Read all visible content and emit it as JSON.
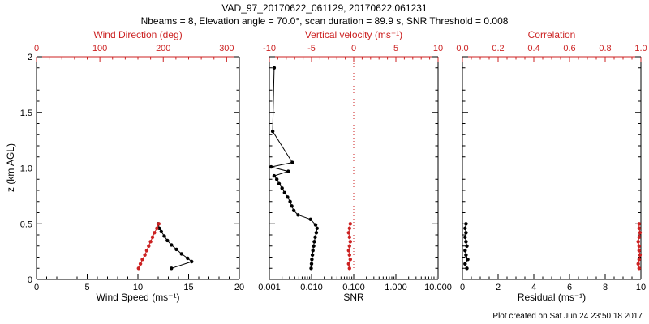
{
  "header": {
    "title": "VAD_97_20170622_061129, 20170622.061231",
    "subtitle": "Nbeams = 8, Elevation angle = 70.0°, scan duration = 89.9 s, SNR Threshold = 0.008"
  },
  "footer": {
    "created": "Plot created on Sat Jun 24 23:50:18 2017"
  },
  "colors": {
    "primary": "#000000",
    "secondary": "#cc2222",
    "background": "#ffffff"
  },
  "y_axis": {
    "label": "z (km AGL)",
    "range": [
      0,
      2
    ],
    "ticks": [
      0,
      0.5,
      1,
      1.5,
      2
    ],
    "tick_labels": [
      "0",
      "0.5",
      "1.0",
      "1.5",
      "2"
    ],
    "minor_step": 0.1
  },
  "chart_data": [
    {
      "type": "scatter",
      "name": "wind-speed-direction-panel",
      "show_y_labels": true,
      "x_bottom": {
        "label": "Wind Speed (ms⁻¹)",
        "scale": "linear",
        "range": [
          0,
          20
        ],
        "ticks": [
          0,
          5,
          10,
          15,
          20
        ],
        "tick_labels": [
          "0",
          "5",
          "10",
          "15",
          "20"
        ],
        "minor_step": 1
      },
      "x_top": {
        "label": "Wind Direction (deg)",
        "scale": "linear",
        "range": [
          0,
          320
        ],
        "ticks": [
          0,
          100,
          200,
          300
        ],
        "tick_labels": [
          "0",
          "100",
          "200",
          "300"
        ],
        "minor_step": 20
      },
      "series": [
        {
          "name": "wind_speed",
          "axis": "bottom",
          "color": "#000000",
          "points": [
            [
              13.3,
              0.1
            ],
            [
              15.3,
              0.16
            ],
            [
              14.9,
              0.19
            ],
            [
              14.3,
              0.23
            ],
            [
              13.8,
              0.27
            ],
            [
              13.3,
              0.31
            ],
            [
              12.9,
              0.35
            ],
            [
              12.6,
              0.39
            ],
            [
              12.3,
              0.43
            ],
            [
              12.1,
              0.46
            ],
            [
              12.0,
              0.5
            ]
          ]
        },
        {
          "name": "wind_direction",
          "axis": "top",
          "color": "#cc2222",
          "points": [
            [
              161,
              0.1
            ],
            [
              164,
              0.14
            ],
            [
              167,
              0.18
            ],
            [
              171,
              0.22
            ],
            [
              174,
              0.26
            ],
            [
              177,
              0.3
            ],
            [
              180,
              0.34
            ],
            [
              183,
              0.38
            ],
            [
              186,
              0.42
            ],
            [
              190,
              0.46
            ],
            [
              193,
              0.5
            ]
          ]
        }
      ]
    },
    {
      "type": "scatter",
      "name": "snr-vertical-velocity-panel",
      "show_y_labels": false,
      "refline_top": 0,
      "x_bottom": {
        "label": "SNR",
        "scale": "log",
        "range": [
          0.001,
          10
        ],
        "ticks": [
          0.001,
          0.01,
          0.1,
          1,
          10
        ],
        "tick_labels": [
          "0.001",
          "0.010",
          "0.100",
          "1.000",
          "10.000"
        ]
      },
      "x_top": {
        "label": "Vertical velocity (ms⁻¹)",
        "scale": "linear",
        "range": [
          -10,
          10
        ],
        "ticks": [
          -10,
          -5,
          0,
          5,
          10
        ],
        "tick_labels": [
          "-10",
          "-5",
          "0",
          "5",
          "10"
        ],
        "minor_step": 1
      },
      "series": [
        {
          "name": "snr",
          "axis": "bottom",
          "color": "#000000",
          "points": [
            [
              0.0098,
              0.1
            ],
            [
              0.01,
              0.14
            ],
            [
              0.0102,
              0.18
            ],
            [
              0.0105,
              0.22
            ],
            [
              0.0108,
              0.26
            ],
            [
              0.0112,
              0.3
            ],
            [
              0.0116,
              0.34
            ],
            [
              0.0122,
              0.38
            ],
            [
              0.013,
              0.42
            ],
            [
              0.0135,
              0.46
            ],
            [
              0.0125,
              0.49
            ],
            [
              0.0095,
              0.54
            ],
            [
              0.0048,
              0.58
            ],
            [
              0.0038,
              0.62
            ],
            [
              0.0034,
              0.66
            ],
            [
              0.0031,
              0.7
            ],
            [
              0.0027,
              0.74
            ],
            [
              0.0023,
              0.78
            ],
            [
              0.002,
              0.82
            ],
            [
              0.0017,
              0.86
            ],
            [
              0.0015,
              0.9
            ],
            [
              0.0013,
              0.93
            ],
            [
              0.0028,
              0.97
            ],
            [
              0.0011,
              1.01
            ],
            [
              0.0035,
              1.05
            ],
            [
              0.0012,
              1.33
            ],
            [
              0.0013,
              1.9
            ]
          ]
        },
        {
          "name": "vertical_velocity",
          "axis": "top",
          "color": "#cc2222",
          "points": [
            [
              -0.5,
              0.1
            ],
            [
              -0.6,
              0.14
            ],
            [
              -0.4,
              0.18
            ],
            [
              -0.5,
              0.22
            ],
            [
              -0.6,
              0.26
            ],
            [
              -0.5,
              0.3
            ],
            [
              -0.4,
              0.34
            ],
            [
              -0.5,
              0.38
            ],
            [
              -0.6,
              0.42
            ],
            [
              -0.5,
              0.46
            ],
            [
              -0.4,
              0.5
            ]
          ]
        }
      ]
    },
    {
      "type": "scatter",
      "name": "residual-correlation-panel",
      "show_y_labels": false,
      "x_bottom": {
        "label": "Residual (ms⁻¹)",
        "scale": "linear",
        "range": [
          0,
          10
        ],
        "ticks": [
          0,
          2,
          4,
          6,
          8,
          10
        ],
        "tick_labels": [
          "0",
          "2",
          "4",
          "6",
          "8",
          "10"
        ],
        "minor_step": 0.5
      },
      "x_top": {
        "label": "Correlation",
        "scale": "linear",
        "range": [
          0,
          1
        ],
        "ticks": [
          0,
          0.2,
          0.4,
          0.6,
          0.8,
          1
        ],
        "tick_labels": [
          "0.0",
          "0.2",
          "0.4",
          "0.6",
          "0.8",
          "1.0"
        ],
        "minor_step": 0.05
      },
      "series": [
        {
          "name": "residual",
          "axis": "bottom",
          "color": "#000000",
          "points": [
            [
              0.25,
              0.1
            ],
            [
              0.15,
              0.14
            ],
            [
              0.3,
              0.18
            ],
            [
              0.2,
              0.22
            ],
            [
              0.15,
              0.26
            ],
            [
              0.25,
              0.3
            ],
            [
              0.2,
              0.34
            ],
            [
              0.15,
              0.38
            ],
            [
              0.2,
              0.42
            ],
            [
              0.15,
              0.46
            ],
            [
              0.2,
              0.5
            ]
          ]
        },
        {
          "name": "correlation",
          "axis": "top",
          "color": "#cc2222",
          "points": [
            [
              0.99,
              0.1
            ],
            [
              0.985,
              0.14
            ],
            [
              0.99,
              0.18
            ],
            [
              0.995,
              0.22
            ],
            [
              0.99,
              0.26
            ],
            [
              0.99,
              0.3
            ],
            [
              0.985,
              0.34
            ],
            [
              0.99,
              0.38
            ],
            [
              0.995,
              0.42
            ],
            [
              0.99,
              0.46
            ],
            [
              0.99,
              0.5
            ]
          ]
        }
      ]
    }
  ]
}
